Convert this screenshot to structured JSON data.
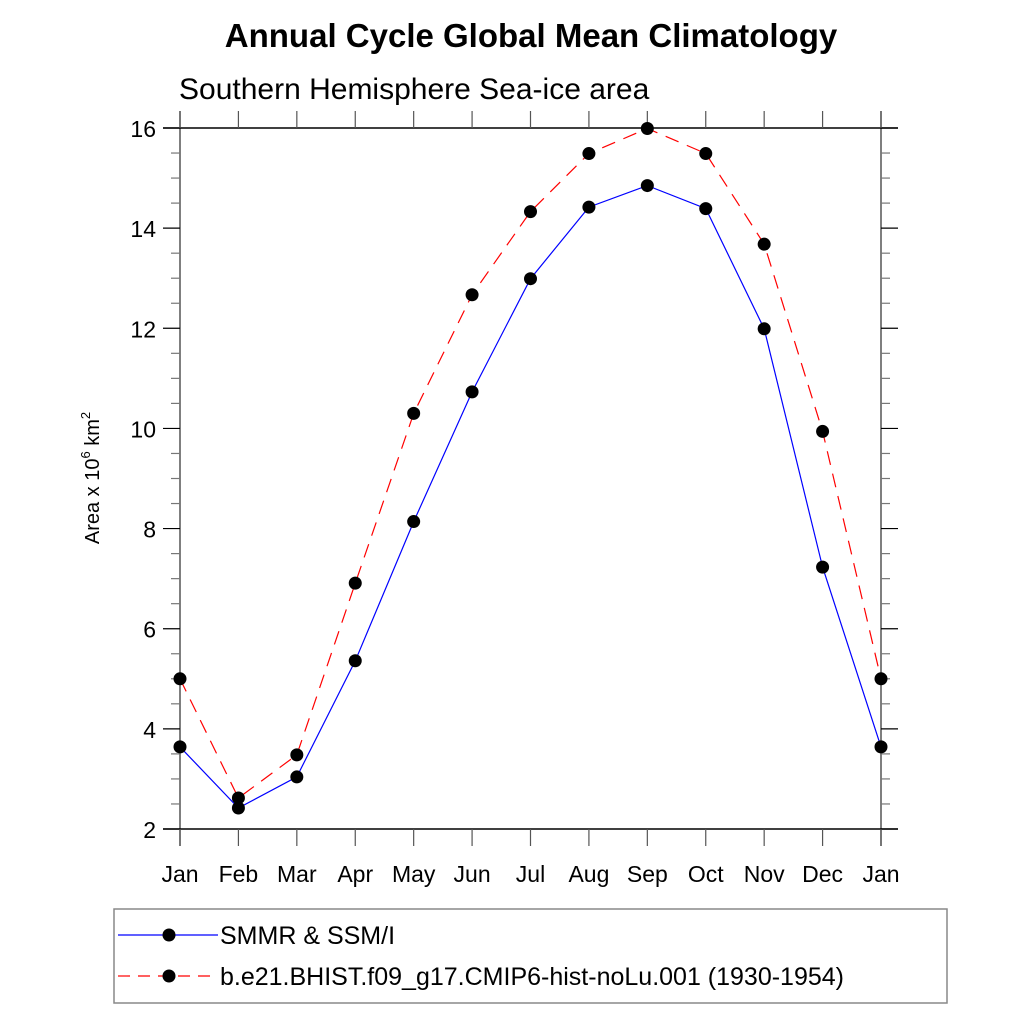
{
  "chart_data": {
    "type": "line",
    "title": "Annual Cycle Global Mean Climatology",
    "subtitle": "Southern Hemisphere Sea-ice area",
    "xlabel": "",
    "ylabel": {
      "base": "Area x 10",
      "exponent": "6",
      "unit": " km",
      "unit_exponent": "2"
    },
    "categories": [
      "Jan",
      "Feb",
      "Mar",
      "Apr",
      "May",
      "Jun",
      "Jul",
      "Aug",
      "Sep",
      "Oct",
      "Nov",
      "Dec",
      "Jan"
    ],
    "ylim": [
      2,
      16
    ],
    "yticks": [
      2,
      4,
      6,
      8,
      10,
      12,
      14,
      16
    ],
    "yminor_step": 0.5,
    "grid": false,
    "legend_position": "bottom",
    "series": [
      {
        "name": "SMMR & SSM/I",
        "color": "#0000ff",
        "dash": "solid",
        "marker": "filled-circle",
        "values": [
          3.64,
          2.42,
          3.04,
          5.36,
          8.14,
          10.73,
          12.99,
          14.42,
          14.85,
          14.39,
          11.99,
          7.23,
          3.64
        ]
      },
      {
        "name": "b.e21.BHIST.f09_g17.CMIP6-hist-noLu.001 (1930-1954)",
        "color": "#ff0000",
        "dash": "dashed",
        "marker": "filled-circle",
        "values": [
          5.0,
          2.62,
          3.48,
          6.91,
          10.3,
          12.67,
          14.33,
          15.49,
          15.99,
          15.49,
          13.68,
          9.94,
          5.0
        ]
      }
    ]
  }
}
